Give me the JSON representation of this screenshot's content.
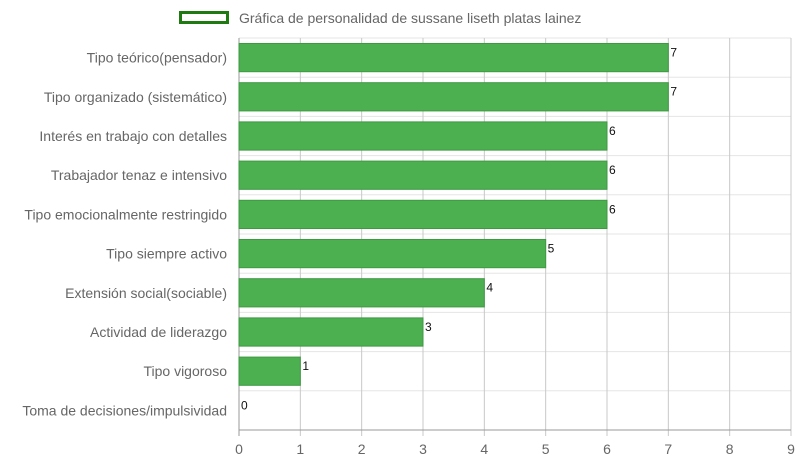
{
  "chart_data": {
    "type": "bar",
    "orientation": "horizontal",
    "categories": [
      "Tipo teórico(pensador)",
      "Tipo organizado (sistemático)",
      "Interés en trabajo con detalles",
      "Trabajador tenaz e intensivo",
      "Tipo emocionalmente restringido",
      "Tipo siempre activo",
      "Extensión social(sociable)",
      "Actividad de liderazgo",
      "Tipo vigoroso",
      "Toma de decisiones/impulsividad"
    ],
    "series": [
      {
        "name": "Gráfica de personalidad de sussane liseth platas lainez",
        "values": [
          7,
          7,
          6,
          6,
          6,
          5,
          4,
          3,
          1,
          0
        ]
      }
    ],
    "data_labels": [
      "7",
      "7",
      "6",
      "6",
      "6",
      "5",
      "4",
      "3",
      "1",
      "0"
    ],
    "x_ticks": [
      "0",
      "1",
      "2",
      "3",
      "4",
      "5",
      "6",
      "7",
      "8",
      "9"
    ],
    "xlim": [
      0,
      9
    ],
    "grid": true,
    "legend_position": "top",
    "colors": {
      "bar": "#4caf50",
      "legend_border": "#1f7a12",
      "grid": "#e5e5e5",
      "axis": "#999999",
      "text": "#666666"
    }
  }
}
